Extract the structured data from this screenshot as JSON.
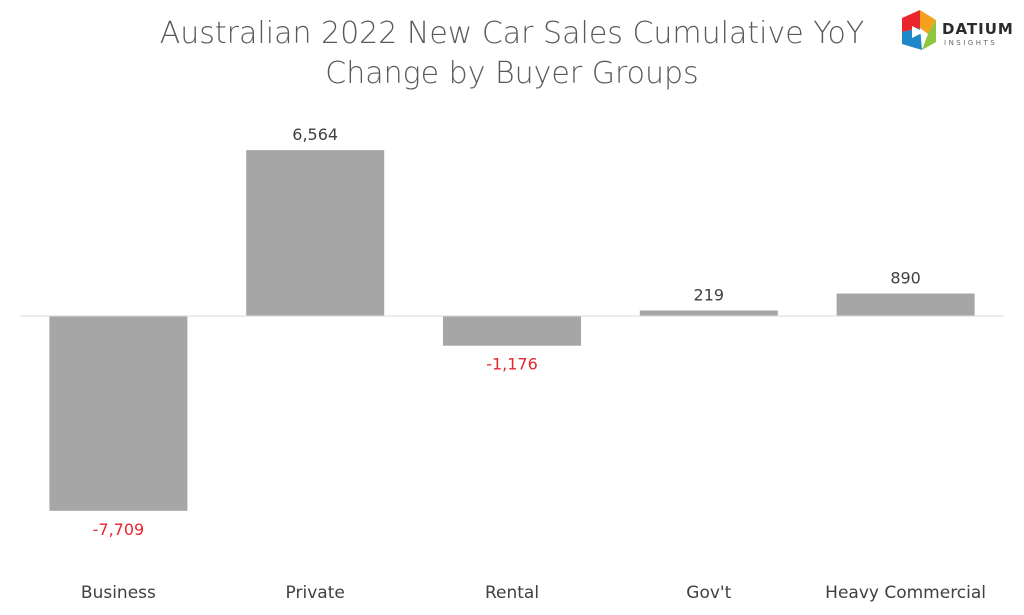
{
  "chart_data": {
    "type": "bar",
    "title": [
      "Australian 2022 New Car Sales Cumulative YoY",
      "Change by Buyer Groups"
    ],
    "categories": [
      "Business",
      "Private",
      "Rental",
      "Gov't",
      "Heavy Commercial"
    ],
    "values": [
      -7709,
      6564,
      -1176,
      219,
      890
    ],
    "data_labels": [
      "-7,709",
      "6,564",
      "-1,176",
      "219",
      "890"
    ],
    "ylim": [
      -8000,
      7000
    ],
    "grid": false,
    "legend": "none",
    "bar_color": "#a6a6a6",
    "positive_label_color": "#404040",
    "negative_label_color": "#e8262b"
  },
  "logo": {
    "name": "DATIUM",
    "tagline": "INSIGHTS",
    "icon": "datium-logo-icon"
  }
}
